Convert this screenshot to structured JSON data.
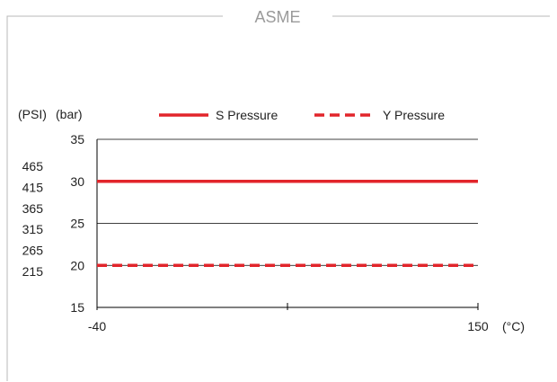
{
  "frame": {
    "title": "ASME"
  },
  "chart_data": {
    "type": "line",
    "title": "ASME",
    "x": [
      -40,
      150
    ],
    "xlim": [
      -40,
      150
    ],
    "x_tick_labels": [
      "-40",
      "150"
    ],
    "xunit_label": "(°C)",
    "ylim": [
      15,
      35
    ],
    "y_ticks_bar": [
      15,
      20,
      25,
      30,
      35
    ],
    "y_ticks_psi": [
      "215",
      "265",
      "315",
      "365",
      "415",
      "465"
    ],
    "ylabel_psi": "(PSI)",
    "ylabel_bar": "(bar)",
    "grid": "horizontal",
    "legend_position": "top",
    "series": [
      {
        "name": "S Pressure",
        "values": [
          30,
          30
        ],
        "style": "solid",
        "color": "#e2252b"
      },
      {
        "name": "Y Pressure",
        "values": [
          20,
          20
        ],
        "style": "dashed",
        "color": "#e2252b"
      }
    ]
  }
}
